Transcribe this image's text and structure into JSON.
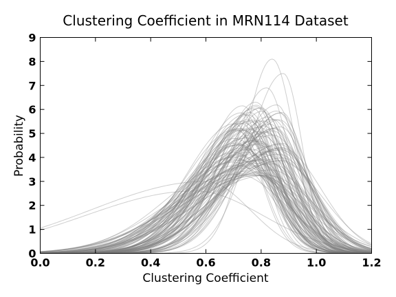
{
  "chart_data": {
    "type": "line",
    "title": "Clustering Coefficient in MRN114 Dataset",
    "xlabel": "Clustering Coefficient",
    "ylabel": "Probability",
    "xlim": [
      0.0,
      1.2
    ],
    "ylim": [
      0,
      9
    ],
    "xticks": [
      "0.0",
      "0.2",
      "0.4",
      "0.6",
      "0.8",
      "1.0",
      "1.2"
    ],
    "yticks": [
      "0",
      "1",
      "2",
      "3",
      "4",
      "5",
      "6",
      "7",
      "8",
      "9"
    ],
    "grid": false,
    "legend": "none",
    "line_color": "#7f7f7f",
    "line_opacity": 0.38,
    "curve_count": 114,
    "density_curves_sample": [
      {
        "peak_x": 0.84,
        "peak_y": 8.1
      },
      {
        "peak_x": 0.88,
        "peak_y": 7.5
      },
      {
        "peak_x": 0.82,
        "peak_y": 6.9
      },
      {
        "peak_x": 0.78,
        "peak_y": 6.3
      },
      {
        "peak_x": 0.76,
        "peak_y": 5.5
      },
      {
        "peak_x": 0.72,
        "peak_y": 5.2
      },
      {
        "peak_x": 0.74,
        "peak_y": 4.4
      },
      {
        "peak_x": 0.7,
        "peak_y": 4.0
      },
      {
        "peak_x": 0.6,
        "peak_y": 3.0
      },
      {
        "peak_x": 0.56,
        "peak_y": 2.6
      }
    ]
  }
}
